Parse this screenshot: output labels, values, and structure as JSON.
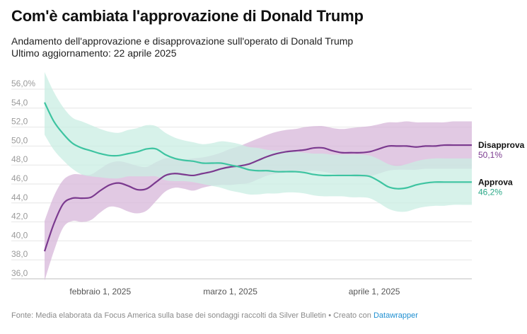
{
  "header": {
    "title": "Com'è cambiata l'approvazione di Donald Trump",
    "subtitle_line1": "Andamento dell'approvazione e disapprovazione sull'operato di Donald Trump",
    "subtitle_line2": "Ultimo aggiornamento: 22 aprile 2025"
  },
  "footer": {
    "source": "Fonte: Media elaborata da Focus America sulla base dei sondaggi raccolti da Silver Bulletin • Creato con ",
    "credit": "Datawrapper"
  },
  "colors": {
    "approve": "#3ec4a1",
    "approve_band": "#c9eee3",
    "disapprove": "#7b3a8f",
    "disapprove_band": "#d7b7da",
    "grid": "#e6e6e6",
    "approve_value_text": "#2aa887",
    "disapprove_value_text": "#7b3a8f"
  },
  "chart_data": {
    "type": "line",
    "title": "Com'è cambiata l'approvazione di Donald Trump",
    "x_type": "date",
    "x_range": [
      "2025-01-20",
      "2025-04-22"
    ],
    "y_range": [
      36,
      56
    ],
    "y_ticks": [
      36,
      38,
      40,
      42,
      44,
      46,
      48,
      50,
      52,
      54,
      56
    ],
    "y_tick_labels": [
      "36,0",
      "38,0",
      "40,0",
      "42,0",
      "44,0",
      "46,0",
      "48,0",
      "50,0",
      "52,0",
      "54,0",
      "56,0%"
    ],
    "x_ticks": [
      "2025-02-01",
      "2025-03-01",
      "2025-04-01"
    ],
    "x_tick_labels": [
      "febbraio 1, 2025",
      "marzo 1, 2025",
      "aprile 1, 2025"
    ],
    "grid": true,
    "legend": "direct labels at right end",
    "series": [
      {
        "name": "Disapprova",
        "end_label": "50,1%",
        "x": [
          "2025-01-20",
          "2025-01-22",
          "2025-01-24",
          "2025-01-26",
          "2025-01-28",
          "2025-01-30",
          "2025-02-01",
          "2025-02-03",
          "2025-02-05",
          "2025-02-07",
          "2025-02-09",
          "2025-02-11",
          "2025-02-13",
          "2025-02-15",
          "2025-02-17",
          "2025-02-19",
          "2025-02-21",
          "2025-02-23",
          "2025-02-25",
          "2025-02-27",
          "2025-03-01",
          "2025-03-03",
          "2025-03-05",
          "2025-03-07",
          "2025-03-09",
          "2025-03-11",
          "2025-03-13",
          "2025-03-15",
          "2025-03-17",
          "2025-03-19",
          "2025-03-21",
          "2025-03-23",
          "2025-03-25",
          "2025-03-27",
          "2025-03-29",
          "2025-03-31",
          "2025-04-02",
          "2025-04-04",
          "2025-04-06",
          "2025-04-08",
          "2025-04-10",
          "2025-04-12",
          "2025-04-14",
          "2025-04-16",
          "2025-04-18",
          "2025-04-20",
          "2025-04-22"
        ],
        "y": [
          38.9,
          41.8,
          43.9,
          44.5,
          44.5,
          44.6,
          45.3,
          45.9,
          46.1,
          45.8,
          45.4,
          45.5,
          46.2,
          46.9,
          47.1,
          47.0,
          46.9,
          47.1,
          47.3,
          47.6,
          47.8,
          47.9,
          48.1,
          48.5,
          48.9,
          49.2,
          49.4,
          49.5,
          49.6,
          49.8,
          49.8,
          49.5,
          49.3,
          49.3,
          49.3,
          49.4,
          49.7,
          50.0,
          50.0,
          50.0,
          49.9,
          50.0,
          50.0,
          50.1,
          50.1,
          50.1,
          50.1
        ],
        "band_low": [
          35.8,
          38.9,
          41.4,
          42.1,
          42.0,
          42.2,
          43.0,
          43.6,
          43.5,
          43.1,
          42.9,
          43.2,
          44.2,
          45.2,
          45.6,
          45.5,
          45.3,
          45.6,
          45.8,
          45.9,
          45.9,
          46.0,
          46.1,
          46.5,
          46.9,
          47.1,
          47.2,
          47.2,
          47.3,
          47.4,
          47.3,
          47.1,
          46.9,
          46.8,
          46.7,
          46.8,
          47.1,
          47.4,
          47.5,
          47.5,
          47.5,
          47.6,
          47.6,
          47.6,
          47.6,
          47.6,
          47.6
        ],
        "band_high": [
          42.1,
          44.7,
          46.4,
          47.0,
          47.0,
          47.0,
          47.6,
          48.2,
          48.4,
          48.2,
          47.9,
          47.8,
          48.3,
          48.7,
          48.7,
          48.6,
          48.7,
          48.8,
          49.0,
          49.3,
          49.7,
          50.0,
          50.4,
          50.8,
          51.2,
          51.5,
          51.7,
          51.8,
          52.0,
          52.1,
          52.1,
          51.9,
          51.8,
          51.9,
          52.0,
          52.1,
          52.3,
          52.5,
          52.5,
          52.6,
          52.5,
          52.5,
          52.5,
          52.5,
          52.6,
          52.6,
          52.6
        ]
      },
      {
        "name": "Approva",
        "end_label": "46,2%",
        "x": [
          "2025-01-20",
          "2025-01-22",
          "2025-01-24",
          "2025-01-26",
          "2025-01-28",
          "2025-01-30",
          "2025-02-01",
          "2025-02-03",
          "2025-02-05",
          "2025-02-07",
          "2025-02-09",
          "2025-02-11",
          "2025-02-13",
          "2025-02-15",
          "2025-02-17",
          "2025-02-19",
          "2025-02-21",
          "2025-02-23",
          "2025-02-25",
          "2025-02-27",
          "2025-03-01",
          "2025-03-03",
          "2025-03-05",
          "2025-03-07",
          "2025-03-09",
          "2025-03-11",
          "2025-03-13",
          "2025-03-15",
          "2025-03-17",
          "2025-03-19",
          "2025-03-21",
          "2025-03-23",
          "2025-03-25",
          "2025-03-27",
          "2025-03-29",
          "2025-03-31",
          "2025-04-02",
          "2025-04-04",
          "2025-04-06",
          "2025-04-08",
          "2025-04-10",
          "2025-04-12",
          "2025-04-14",
          "2025-04-16",
          "2025-04-18",
          "2025-04-20",
          "2025-04-22"
        ],
        "y": [
          54.6,
          52.6,
          51.3,
          50.3,
          49.8,
          49.5,
          49.2,
          49.0,
          49.0,
          49.2,
          49.4,
          49.7,
          49.7,
          49.1,
          48.7,
          48.5,
          48.4,
          48.2,
          48.2,
          48.2,
          48.0,
          47.8,
          47.5,
          47.4,
          47.4,
          47.3,
          47.3,
          47.3,
          47.2,
          47.0,
          46.9,
          46.9,
          46.9,
          46.9,
          46.9,
          46.8,
          46.3,
          45.7,
          45.5,
          45.6,
          45.9,
          46.1,
          46.2,
          46.2,
          46.2,
          46.2,
          46.2
        ],
        "band_low": [
          51.2,
          49.6,
          48.5,
          47.6,
          47.0,
          46.8,
          46.7,
          46.6,
          46.6,
          46.8,
          46.8,
          46.8,
          46.8,
          46.4,
          46.3,
          46.3,
          46.2,
          46.0,
          45.8,
          45.6,
          45.3,
          45.1,
          44.9,
          44.9,
          45.0,
          45.0,
          45.1,
          45.1,
          45.0,
          44.8,
          44.7,
          44.7,
          44.7,
          44.6,
          44.6,
          44.5,
          44.0,
          43.4,
          43.1,
          43.1,
          43.4,
          43.6,
          43.7,
          43.7,
          43.8,
          43.8,
          43.8
        ],
        "band_high": [
          57.8,
          55.7,
          54.1,
          53.0,
          52.6,
          52.2,
          51.8,
          51.5,
          51.4,
          51.7,
          51.9,
          52.2,
          52.1,
          51.4,
          50.9,
          50.6,
          50.4,
          50.2,
          50.3,
          50.5,
          50.4,
          50.2,
          49.9,
          49.8,
          49.6,
          49.5,
          49.5,
          49.4,
          49.3,
          49.2,
          49.2,
          49.1,
          49.1,
          49.1,
          49.1,
          49.0,
          48.6,
          48.1,
          47.9,
          48.1,
          48.4,
          48.6,
          48.7,
          48.7,
          48.7,
          48.7,
          48.7
        ]
      }
    ]
  }
}
